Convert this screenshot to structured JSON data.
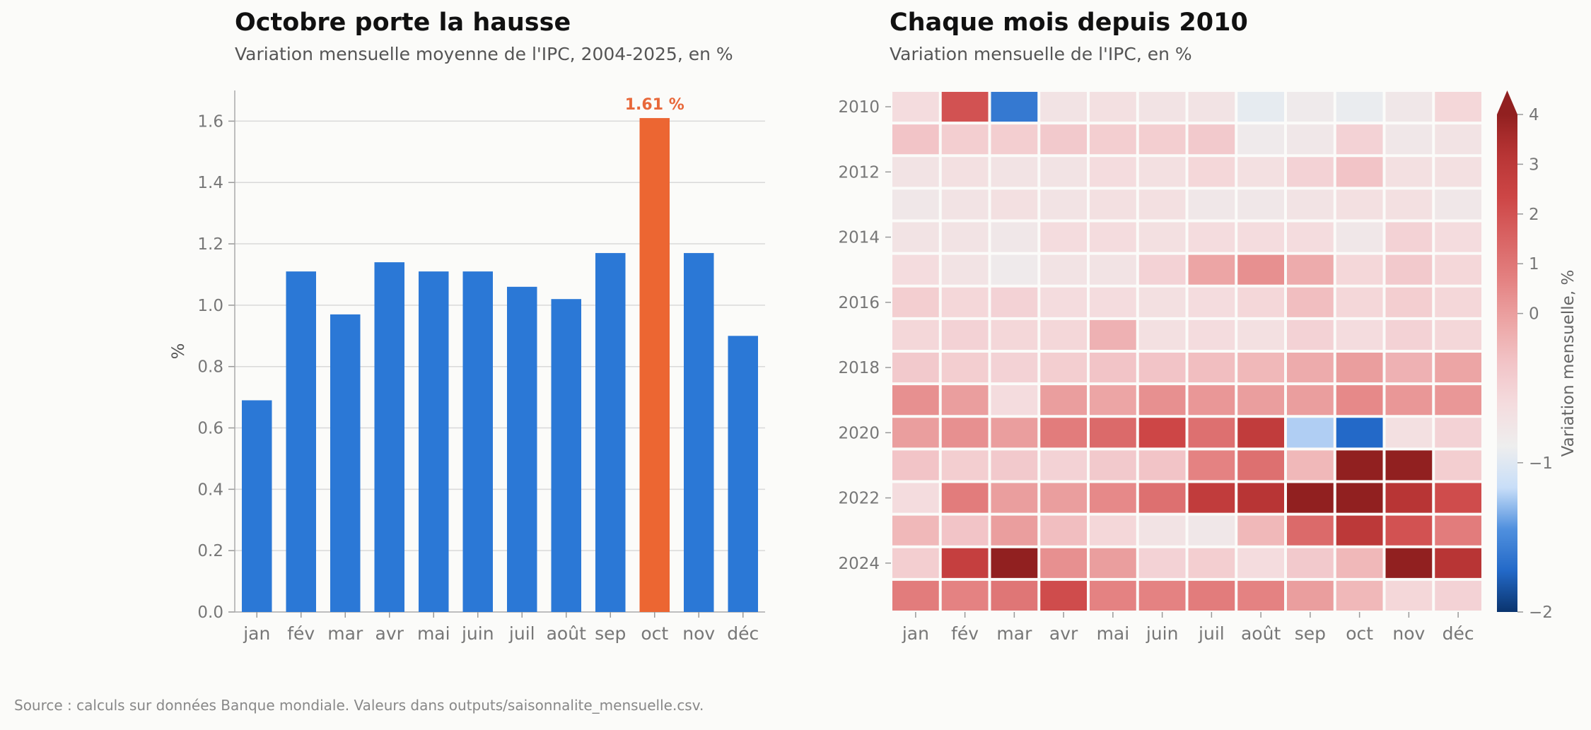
{
  "source_note": "Source : calculs sur données Banque mondiale. Valeurs dans outputs/saisonnalite_mensuelle.csv.",
  "colors": {
    "bar": "#2b78d6",
    "highlight": "#ec6632",
    "highlight_label": "#e8683a",
    "background": "#fbfbf9"
  },
  "chart_data": [
    {
      "type": "bar",
      "title": "Octobre porte la hausse",
      "subtitle": "Variation mensuelle moyenne de l'IPC, 2004-2025, en %",
      "ylabel": "%",
      "xlabel": "",
      "categories": [
        "jan",
        "fév",
        "mar",
        "avr",
        "mai",
        "juin",
        "juil",
        "août",
        "sep",
        "oct",
        "nov",
        "déc"
      ],
      "values": [
        0.69,
        1.11,
        0.97,
        1.14,
        1.11,
        1.11,
        1.06,
        1.02,
        1.17,
        1.61,
        1.17,
        0.9
      ],
      "highlight_index": 9,
      "highlight_label": "1.61 %",
      "ylim": [
        0,
        1.7
      ],
      "yticks": [
        "0.0",
        "0.2",
        "0.4",
        "0.6",
        "0.8",
        "1.0",
        "1.2",
        "1.4",
        "1.6"
      ],
      "grid": "horizontal"
    },
    {
      "type": "heatmap",
      "title": "Chaque mois depuis 2010",
      "subtitle": "Variation mensuelle de l'IPC, en %",
      "columns": [
        "jan",
        "fév",
        "mar",
        "avr",
        "mai",
        "juin",
        "juil",
        "août",
        "sep",
        "oct",
        "nov",
        "déc"
      ],
      "rows": [
        2010,
        2011,
        2012,
        2013,
        2014,
        2015,
        2016,
        2017,
        2018,
        2019,
        2020,
        2021,
        2022,
        2023,
        2024,
        2025
      ],
      "ytick_labels": [
        "2010",
        "2012",
        "2014",
        "2016",
        "2018",
        "2020",
        "2022",
        "2024"
      ],
      "values": [
        [
          0.5,
          2.8,
          -1.3,
          0.3,
          0.4,
          0.3,
          0.3,
          -0.1,
          0.1,
          -0.05,
          0.2,
          0.6
        ],
        [
          1.0,
          0.8,
          0.8,
          0.9,
          0.8,
          0.8,
          0.9,
          0.1,
          0.2,
          0.7,
          0.2,
          0.3
        ],
        [
          0.3,
          0.4,
          0.3,
          0.3,
          0.5,
          0.4,
          0.6,
          0.4,
          0.7,
          1.0,
          0.4,
          0.4
        ],
        [
          0.2,
          0.3,
          0.4,
          0.3,
          0.4,
          0.4,
          0.2,
          0.2,
          0.3,
          0.4,
          0.4,
          0.2
        ],
        [
          0.3,
          0.3,
          0.2,
          0.5,
          0.5,
          0.4,
          0.5,
          0.5,
          0.5,
          0.2,
          0.7,
          0.5
        ],
        [
          0.5,
          0.3,
          0.1,
          0.3,
          0.3,
          0.7,
          1.5,
          1.8,
          1.4,
          0.6,
          0.9,
          0.6
        ],
        [
          0.8,
          0.6,
          0.7,
          0.5,
          0.5,
          0.4,
          0.5,
          0.6,
          1.1,
          0.6,
          0.8,
          0.6
        ],
        [
          0.6,
          0.7,
          0.6,
          0.6,
          1.3,
          0.4,
          0.5,
          0.4,
          0.7,
          0.5,
          0.7,
          0.6
        ],
        [
          0.9,
          0.8,
          0.7,
          0.8,
          1.0,
          1.0,
          1.1,
          1.2,
          1.4,
          1.6,
          1.3,
          1.5
        ],
        [
          1.8,
          1.6,
          0.5,
          1.6,
          1.5,
          1.8,
          1.7,
          1.6,
          1.6,
          1.9,
          1.7,
          1.7
        ],
        [
          1.6,
          1.8,
          1.6,
          2.1,
          2.4,
          3.0,
          2.3,
          3.3,
          -0.6,
          -1.5,
          0.4,
          0.7
        ],
        [
          1.0,
          0.8,
          0.9,
          0.7,
          0.9,
          1.0,
          2.0,
          2.3,
          1.2,
          4.2,
          4.3,
          0.8
        ],
        [
          0.5,
          2.1,
          1.6,
          1.6,
          1.9,
          2.3,
          3.3,
          3.5,
          4.2,
          4.2,
          3.5,
          2.9
        ],
        [
          1.2,
          1.0,
          1.6,
          1.1,
          0.6,
          0.3,
          0.2,
          1.2,
          2.4,
          3.4,
          2.8,
          2.1
        ],
        [
          0.8,
          3.2,
          4.1,
          1.8,
          1.6,
          0.7,
          0.8,
          0.5,
          0.9,
          1.2,
          4.0,
          3.5
        ],
        [
          2.1,
          2.0,
          2.2,
          2.9,
          2.0,
          2.0,
          2.1,
          2.0,
          1.6,
          1.2,
          0.6,
          0.7
        ]
      ],
      "colorbar": {
        "label": "Variation mensuelle, %",
        "range": [
          -2,
          4
        ],
        "center": 0,
        "ticks": [
          "4",
          "3",
          "2",
          "1",
          "0",
          "−1",
          "−2"
        ],
        "extend": "max"
      }
    }
  ]
}
